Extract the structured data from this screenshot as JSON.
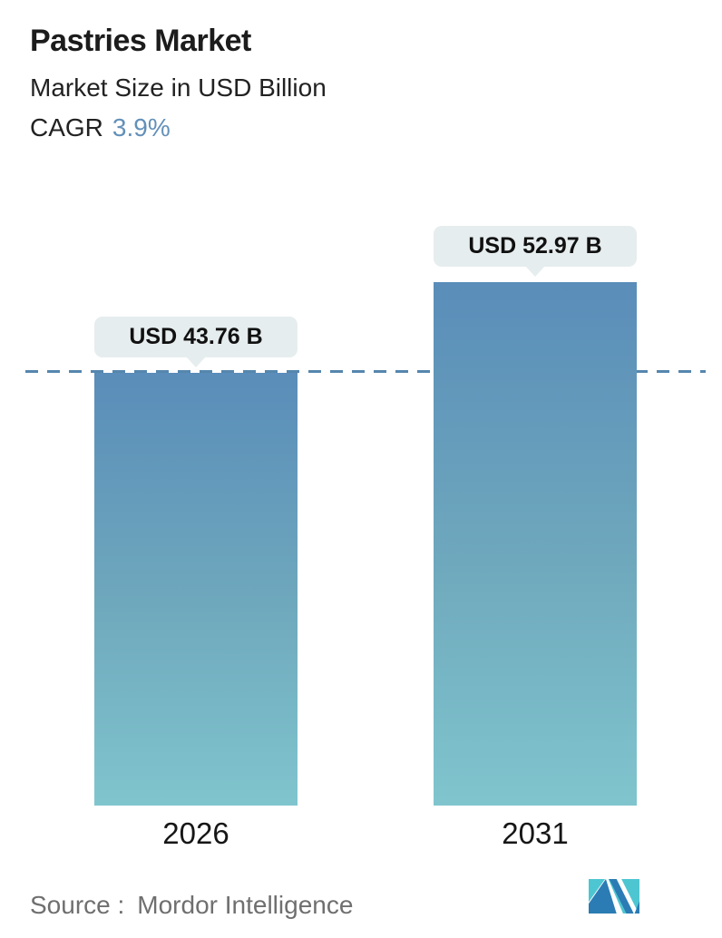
{
  "header": {
    "title": "Pastries Market",
    "subtitle": "Market Size in USD Billion",
    "cagr_label": "CAGR",
    "cagr_value": "3.9%"
  },
  "chart_data": {
    "type": "bar",
    "title": "Pastries Market",
    "subtitle": "Market Size in USD Billion",
    "unit": "USD Billion",
    "cagr_percent": 3.9,
    "categories": [
      "2026",
      "2031"
    ],
    "values": [
      43.76,
      52.97
    ],
    "value_labels": [
      "USD 43.76 B",
      "USD 52.97 B"
    ],
    "reference_line": {
      "value": 43.76,
      "style": "dashed",
      "color": "#5586ae"
    },
    "ylim": [
      0,
      55
    ],
    "grid": false,
    "legend": false,
    "bar_gradient": {
      "top": "#5a8db9",
      "bottom": "#80c5ce"
    },
    "label_bubble_color": "#e6edee"
  },
  "footer": {
    "source_prefix": "Source :",
    "source_name": "Mordor Intelligence",
    "logo_name": "mordor-intelligence-logo"
  },
  "colors": {
    "accent_blue": "#6390b9",
    "dashed_line": "#5586ae",
    "bubble_bg": "#e6edee",
    "text": "#1e1e1e",
    "source_text": "#6f6f6f",
    "logo_teal": "#4ec6d1",
    "logo_blue": "#2b7cb4"
  }
}
